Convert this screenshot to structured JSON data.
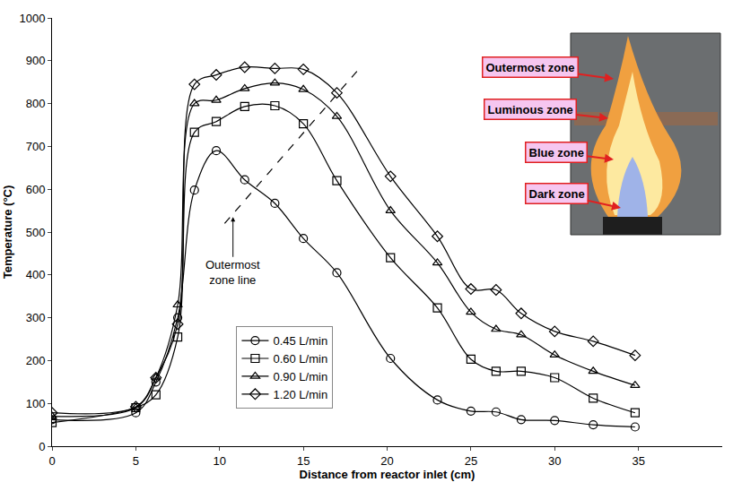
{
  "chart_data": {
    "type": "line",
    "x_title": "Distance from reactor inlet (cm)",
    "y_title": "Temperature (°C)",
    "xlim": [
      0,
      40
    ],
    "xticks": [
      0,
      5,
      10,
      15,
      20,
      25,
      30,
      35
    ],
    "ylim": [
      0,
      1000
    ],
    "yticks": [
      0,
      100,
      200,
      300,
      400,
      500,
      600,
      700,
      800,
      900,
      1000
    ],
    "grid": false,
    "legend": "lower middle",
    "x": [
      0,
      5,
      6.2,
      7.5,
      8.5,
      9.8,
      11.5,
      13.3,
      15,
      17,
      20.2,
      23,
      25,
      26.5,
      28,
      30,
      32.3,
      34.8
    ],
    "series": [
      {
        "name": "0.45 L/min",
        "color": "#000000",
        "marker": "circle",
        "line_style": "solid",
        "values": [
          62,
          78,
          150,
          300,
          598,
          690,
          622,
          567,
          485,
          405,
          205,
          108,
          82,
          80,
          62,
          60,
          50,
          45
        ]
      },
      {
        "name": "0.60 L/min",
        "color": "#000000",
        "marker": "square",
        "line_style": "solid",
        "values": [
          55,
          90,
          120,
          255,
          733,
          758,
          793,
          795,
          753,
          620,
          440,
          323,
          203,
          175,
          175,
          160,
          112,
          78
        ]
      },
      {
        "name": "0.90 L/min",
        "color": "#000000",
        "marker": "triangle",
        "line_style": "solid",
        "values": [
          70,
          90,
          160,
          330,
          800,
          808,
          835,
          848,
          833,
          770,
          550,
          428,
          313,
          273,
          260,
          213,
          175,
          142
        ]
      },
      {
        "name": "1.20 L/min",
        "color": "#000000",
        "marker": "diamond",
        "line_style": "solid",
        "values": [
          78,
          92,
          160,
          285,
          845,
          867,
          885,
          882,
          880,
          825,
          630,
          490,
          367,
          365,
          310,
          268,
          245,
          212
        ]
      }
    ],
    "outermost_zone_line": {
      "x": [
        10.3,
        18.3
      ],
      "y": [
        520,
        880
      ],
      "line_style": "dash"
    },
    "annotations": [
      {
        "text": "Outermost\nzone line",
        "x": 10.8,
        "y": 535
      }
    ],
    "photo_labels": [
      "Outermost zone",
      "Luminous zone",
      "Blue zone",
      "Dark zone"
    ]
  }
}
